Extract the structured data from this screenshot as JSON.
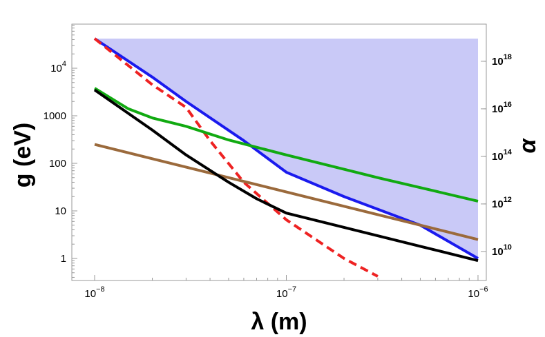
{
  "chart_data": {
    "type": "line",
    "title": "",
    "xlabel": "λ (m)",
    "ylabel": "g (eV)",
    "y2label": "α",
    "xscale": "log",
    "yscale": "log",
    "xlim": [
      6e-09,
      1.2e-06
    ],
    "ylim": [
      0.4,
      60000
    ],
    "x_ticks": [
      {
        "value": 1e-08,
        "label": "10",
        "exp": "−8"
      },
      {
        "value": 1e-07,
        "label": "10",
        "exp": "−7"
      },
      {
        "value": 1e-06,
        "label": "10",
        "exp": "−6"
      }
    ],
    "y_ticks": [
      {
        "value": 1,
        "label": "1",
        "exp": ""
      },
      {
        "value": 10,
        "label": "10",
        "exp": ""
      },
      {
        "value": 100,
        "label": "100",
        "exp": ""
      },
      {
        "value": 1000,
        "label": "1000",
        "exp": ""
      },
      {
        "value": 10000,
        "label": "10",
        "exp": "4"
      }
    ],
    "y2_ticks": [
      {
        "g_value": 1.4,
        "label": "10",
        "exp": "10"
      },
      {
        "g_value": 14,
        "label": "10",
        "exp": "12"
      },
      {
        "g_value": 140,
        "label": "10",
        "exp": "14"
      },
      {
        "g_value": 1400,
        "label": "10",
        "exp": "16"
      },
      {
        "g_value": 14000,
        "label": "10",
        "exp": "18"
      }
    ],
    "grid": false,
    "legend": "none",
    "shaded_region": {
      "color": "#c9c9f7",
      "top_g": 42000,
      "x_range": [
        1e-08,
        1e-06
      ],
      "lower_boundary": "blue"
    },
    "series": [
      {
        "color": "#1a1aee",
        "style": "solid",
        "x": [
          1e-08,
          2e-08,
          3e-08,
          6e-08,
          1e-07,
          2e-07,
          5e-07,
          1e-06
        ],
        "y": [
          42000,
          6500,
          2000,
          300,
          65,
          20,
          5,
          1.0
        ]
      },
      {
        "color": "#ee2222",
        "style": "dashed",
        "x": [
          1e-08,
          2e-08,
          3e-08,
          4e-08,
          6e-08,
          1e-07,
          2e-07,
          3e-07
        ],
        "y": [
          42000,
          4500,
          1500,
          300,
          40,
          6.5,
          1.0,
          0.42
        ]
      },
      {
        "color": "#11aa11",
        "style": "solid",
        "x": [
          1e-08,
          1.5e-08,
          2e-08,
          3e-08,
          5e-08,
          1e-07,
          3e-07,
          1e-06
        ],
        "y": [
          3800,
          1400,
          900,
          600,
          310,
          150,
          50,
          16
        ]
      },
      {
        "color": "#9b6a3c",
        "style": "solid",
        "x": [
          1e-08,
          1e-06
        ],
        "y": [
          250,
          2.5
        ]
      },
      {
        "color": "#000000",
        "style": "solid",
        "x": [
          1e-08,
          2e-08,
          3e-08,
          5e-08,
          7e-08,
          1e-07,
          2e-07,
          5e-07,
          1e-06
        ],
        "y": [
          3500,
          500,
          150,
          40,
          18,
          9,
          4.5,
          1.8,
          0.9
        ]
      }
    ]
  }
}
